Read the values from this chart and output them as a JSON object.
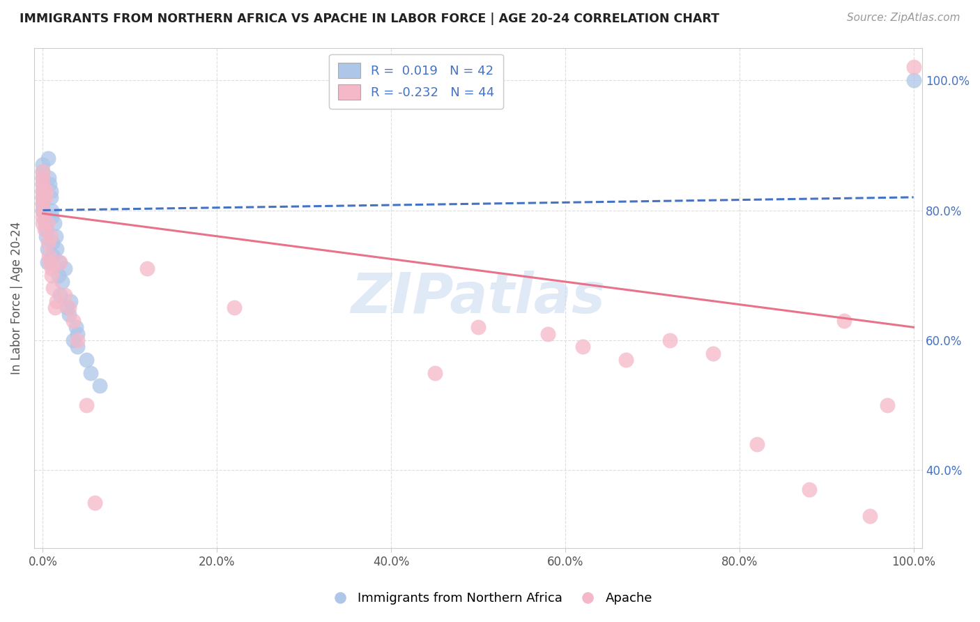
{
  "title": "IMMIGRANTS FROM NORTHERN AFRICA VS APACHE IN LABOR FORCE | AGE 20-24 CORRELATION CHART",
  "source": "Source: ZipAtlas.com",
  "ylabel": "In Labor Force | Age 20-24",
  "x_tick_labels": [
    "0.0%",
    "20.0%",
    "40.0%",
    "60.0%",
    "80.0%",
    "100.0%"
  ],
  "y_tick_labels": [
    "40.0%",
    "60.0%",
    "80.0%",
    "100.0%"
  ],
  "y_tick_values": [
    0.4,
    0.6,
    0.8,
    1.0
  ],
  "x_tick_values": [
    0.0,
    0.2,
    0.4,
    0.6,
    0.8,
    1.0
  ],
  "xlim": [
    -0.01,
    1.01
  ],
  "ylim": [
    0.28,
    1.05
  ],
  "legend1_label": "R =  0.019   N = 42",
  "legend2_label": "R = -0.232   N = 44",
  "legend_bottom_label1": "Immigrants from Northern Africa",
  "legend_bottom_label2": "Apache",
  "blue_color": "#aec6e8",
  "pink_color": "#f4b8c8",
  "blue_line_color": "#4472c4",
  "pink_line_color": "#e8728a",
  "blue_scatter_x": [
    0.0,
    0.0,
    0.0,
    0.0,
    0.0,
    0.0,
    0.0,
    0.0,
    0.003,
    0.003,
    0.004,
    0.004,
    0.005,
    0.005,
    0.006,
    0.007,
    0.008,
    0.009,
    0.009,
    0.01,
    0.01,
    0.011,
    0.012,
    0.013,
    0.015,
    0.016,
    0.018,
    0.019,
    0.02,
    0.022,
    0.025,
    0.028,
    0.03,
    0.032,
    0.035,
    0.038,
    0.04,
    0.04,
    0.05,
    0.055,
    0.065,
    1.0
  ],
  "blue_scatter_y": [
    0.8,
    0.81,
    0.82,
    0.83,
    0.84,
    0.85,
    0.86,
    0.87,
    0.78,
    0.79,
    0.76,
    0.77,
    0.72,
    0.74,
    0.88,
    0.85,
    0.84,
    0.82,
    0.83,
    0.79,
    0.8,
    0.75,
    0.73,
    0.78,
    0.76,
    0.74,
    0.7,
    0.72,
    0.67,
    0.69,
    0.71,
    0.65,
    0.64,
    0.66,
    0.6,
    0.62,
    0.59,
    0.61,
    0.57,
    0.55,
    0.53,
    1.0
  ],
  "pink_scatter_x": [
    0.0,
    0.0,
    0.0,
    0.0,
    0.0,
    0.0,
    0.0,
    0.0,
    0.0,
    0.002,
    0.003,
    0.004,
    0.005,
    0.006,
    0.007,
    0.008,
    0.009,
    0.01,
    0.01,
    0.012,
    0.014,
    0.016,
    0.02,
    0.025,
    0.03,
    0.035,
    0.04,
    0.05,
    0.06,
    0.12,
    0.22,
    0.45,
    0.5,
    0.58,
    0.62,
    0.67,
    0.72,
    0.77,
    0.82,
    0.88,
    0.92,
    0.95,
    0.97,
    1.0
  ],
  "pink_scatter_y": [
    0.8,
    0.81,
    0.82,
    0.83,
    0.84,
    0.85,
    0.86,
    0.79,
    0.78,
    0.77,
    0.82,
    0.83,
    0.78,
    0.75,
    0.73,
    0.72,
    0.76,
    0.7,
    0.71,
    0.68,
    0.65,
    0.66,
    0.72,
    0.67,
    0.65,
    0.63,
    0.6,
    0.5,
    0.35,
    0.71,
    0.65,
    0.55,
    0.62,
    0.61,
    0.59,
    0.57,
    0.6,
    0.58,
    0.44,
    0.37,
    0.63,
    0.33,
    0.5,
    1.02
  ],
  "watermark_text": "ZIPatlas",
  "background_color": "#ffffff",
  "grid_color": "#dddddd",
  "right_tick_color": "#4472c4"
}
